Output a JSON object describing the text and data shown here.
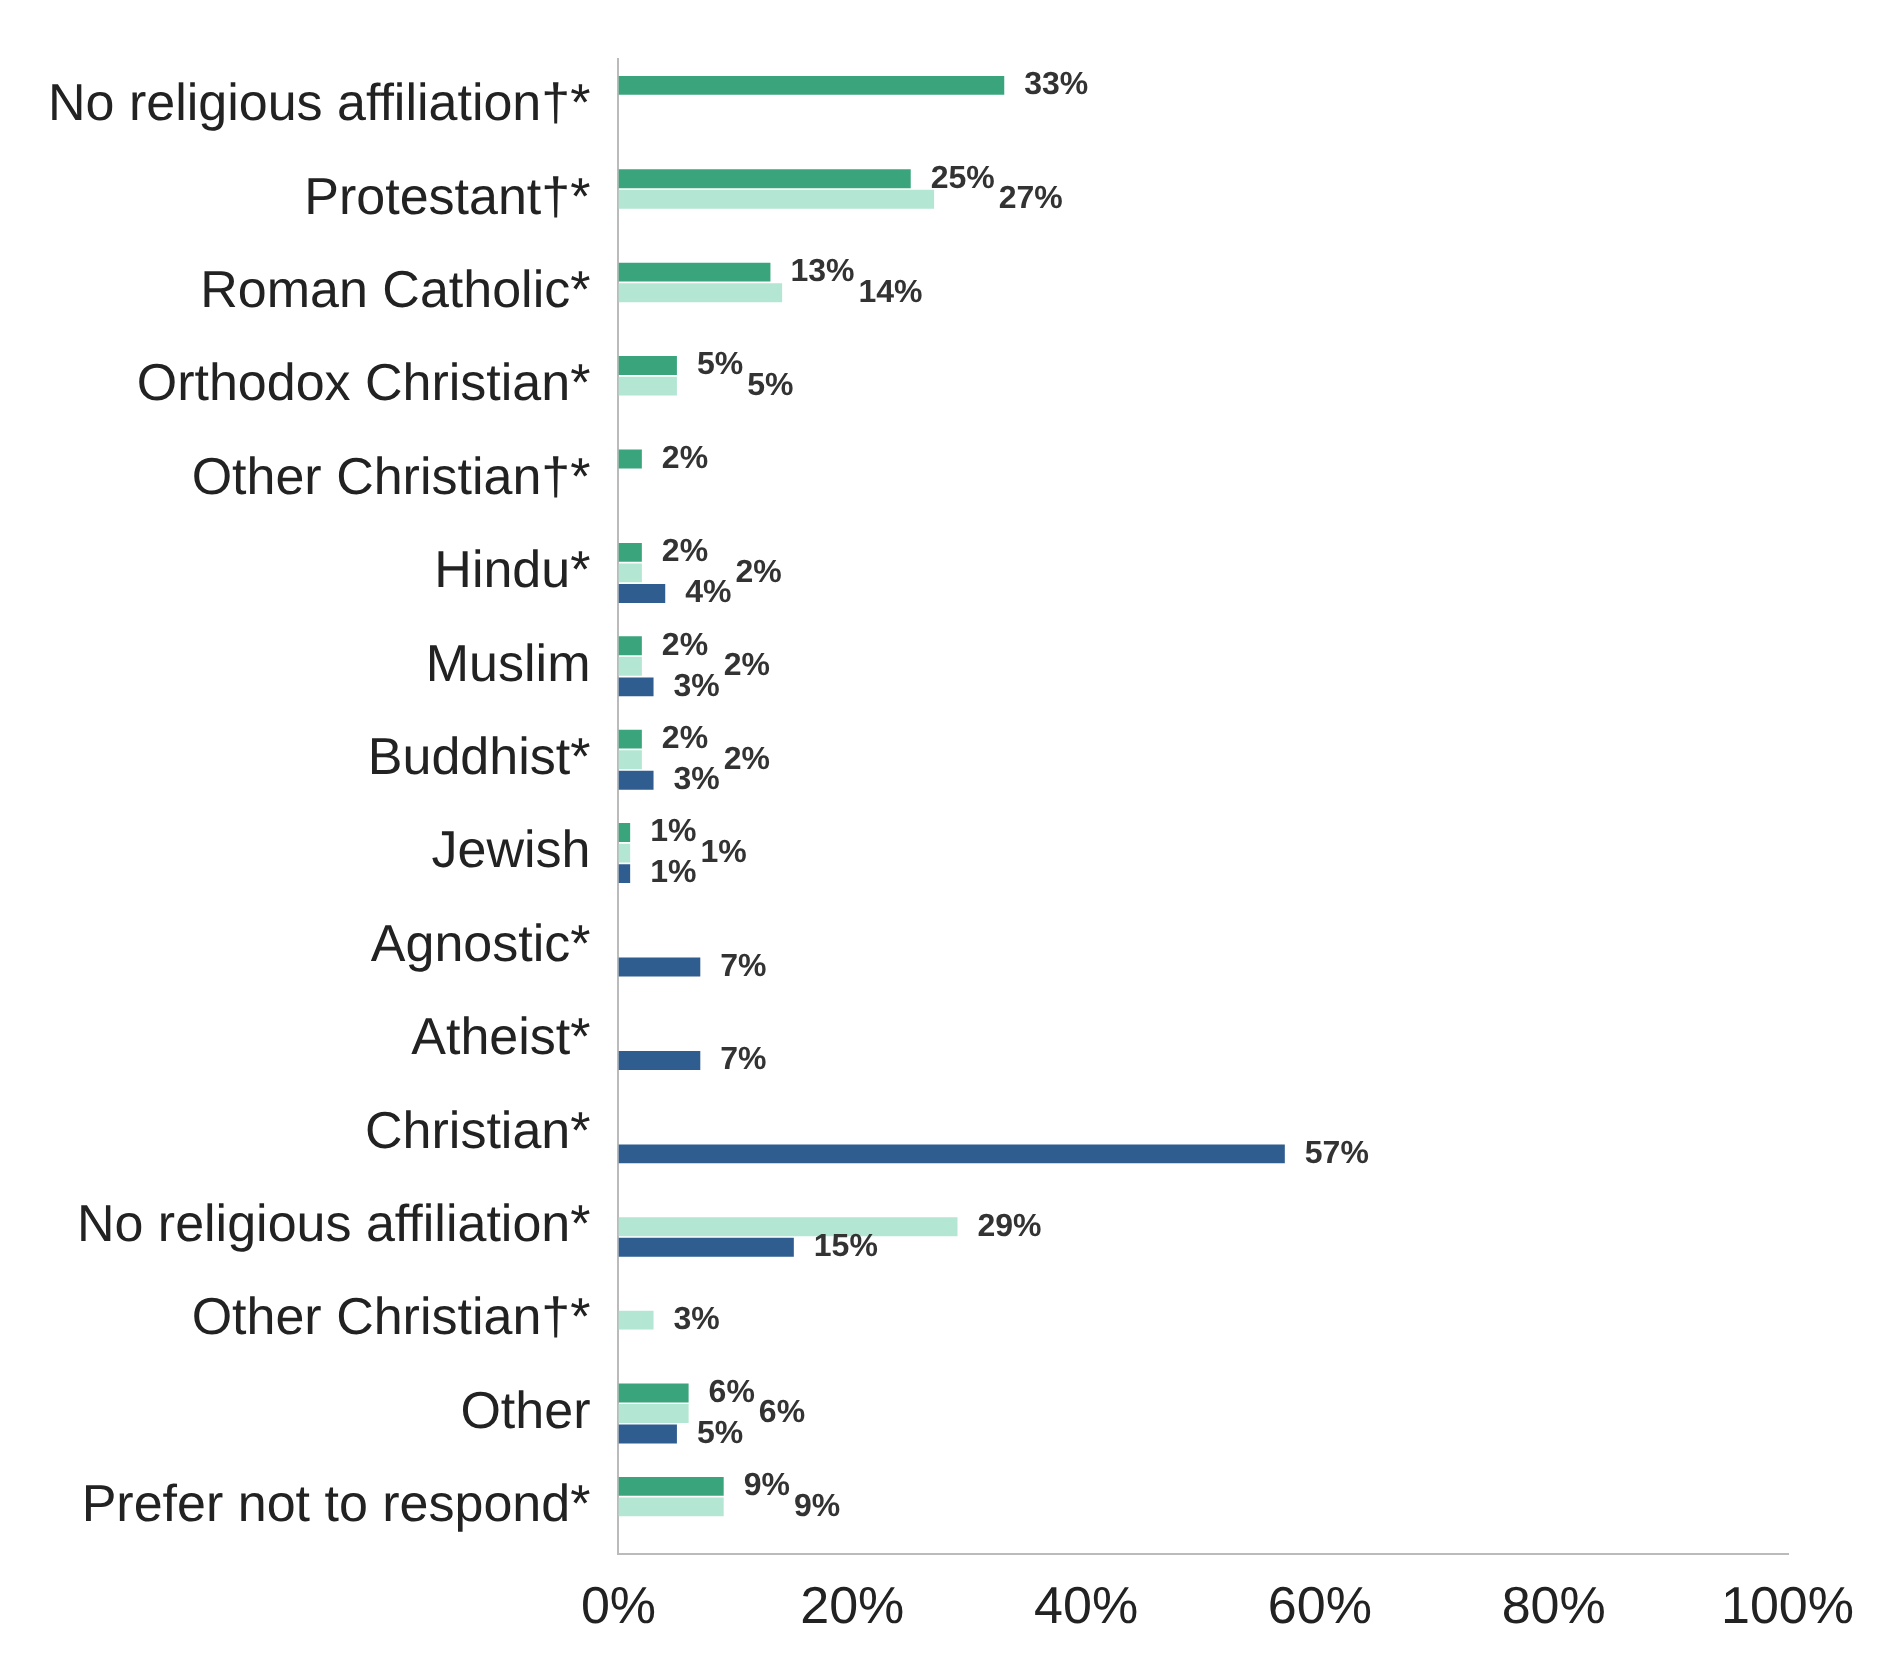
{
  "chart_data": {
    "type": "bar",
    "orientation": "horizontal",
    "categories": [
      "No religious affiliation†*",
      "Protestant†*",
      "Roman Catholic*",
      "Orthodox Christian*",
      "Other Christian†*",
      "Hindu*",
      "Muslim",
      "Buddhist*",
      "Jewish",
      "Agnostic*",
      "Atheist*",
      "Christian*",
      "No religious affiliation*",
      "Other Christian†*",
      "Other",
      "Prefer not to respond*"
    ],
    "series": [
      {
        "color": "#3aa57c",
        "values": [
          33,
          25,
          13,
          5,
          2,
          2,
          2,
          2,
          1,
          null,
          null,
          null,
          null,
          null,
          6,
          9
        ],
        "value_labels": [
          "33%",
          "25%",
          "13%",
          "5%",
          "2%",
          "2%",
          "2%",
          "2%",
          "1%",
          null,
          null,
          null,
          null,
          null,
          "6%",
          "9%"
        ]
      },
      {
        "color": "#b3e6d3",
        "values": [
          null,
          27,
          14,
          5,
          null,
          2,
          2,
          2,
          1,
          null,
          null,
          null,
          29,
          3,
          6,
          9
        ],
        "value_labels": [
          null,
          "27%",
          "14%",
          "5%",
          null,
          "2%",
          "2%",
          "2%",
          "1%",
          null,
          null,
          null,
          "29%",
          "3%",
          "6%",
          "9%"
        ]
      },
      {
        "color": "#2f5d8f",
        "values": [
          null,
          null,
          null,
          null,
          null,
          4,
          3,
          3,
          1,
          7,
          7,
          57,
          15,
          null,
          5,
          null
        ],
        "value_labels": [
          null,
          null,
          null,
          null,
          null,
          "4%",
          "3%",
          "3%",
          "1%",
          "7%",
          "7%",
          "57%",
          "15%",
          null,
          "5%",
          null
        ]
      }
    ],
    "xlim": [
      0,
      100
    ],
    "xticks": [
      {
        "value": 0,
        "label": "0%"
      },
      {
        "value": 20,
        "label": "20%"
      },
      {
        "value": 40,
        "label": "40%"
      },
      {
        "value": 60,
        "label": "60%"
      },
      {
        "value": 80,
        "label": "80%"
      },
      {
        "value": 100,
        "label": "100%"
      }
    ],
    "grid": false,
    "legend": false
  }
}
